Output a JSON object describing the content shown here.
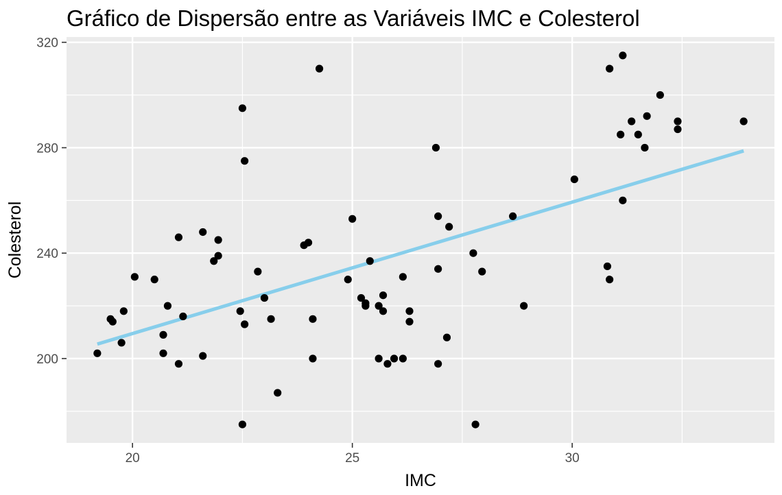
{
  "chart_data": {
    "type": "scatter",
    "title": "Gráfico de Dispersão entre as Variáveis IMC e Colesterol",
    "xlabel": "IMC",
    "ylabel": "Colesterol",
    "xlim": [
      18.5,
      34.6
    ],
    "ylim": [
      168,
      322
    ],
    "x_ticks": [
      20,
      25,
      30
    ],
    "y_ticks": [
      200,
      240,
      280,
      320
    ],
    "x_tick_labels": [
      "20",
      "25",
      "30"
    ],
    "y_tick_labels": [
      "200",
      "240",
      "280",
      "320"
    ],
    "grid": true,
    "background": "#ebebeb",
    "point_color": "#000000",
    "trend_color": "#87ceeb",
    "trend_line": {
      "x": [
        19.2,
        33.9
      ],
      "y": [
        205.5,
        278.8
      ]
    },
    "points": [
      {
        "x": 19.2,
        "y": 202
      },
      {
        "x": 19.5,
        "y": 215
      },
      {
        "x": 19.55,
        "y": 214
      },
      {
        "x": 19.75,
        "y": 206
      },
      {
        "x": 19.8,
        "y": 218
      },
      {
        "x": 20.05,
        "y": 231
      },
      {
        "x": 20.5,
        "y": 230
      },
      {
        "x": 20.7,
        "y": 209
      },
      {
        "x": 20.7,
        "y": 202
      },
      {
        "x": 20.8,
        "y": 220
      },
      {
        "x": 21.05,
        "y": 246
      },
      {
        "x": 21.05,
        "y": 198
      },
      {
        "x": 21.15,
        "y": 216
      },
      {
        "x": 21.6,
        "y": 248
      },
      {
        "x": 21.6,
        "y": 201
      },
      {
        "x": 21.85,
        "y": 237
      },
      {
        "x": 21.95,
        "y": 239
      },
      {
        "x": 21.95,
        "y": 245
      },
      {
        "x": 22.45,
        "y": 218
      },
      {
        "x": 22.5,
        "y": 295
      },
      {
        "x": 22.5,
        "y": 175
      },
      {
        "x": 22.55,
        "y": 275
      },
      {
        "x": 22.55,
        "y": 213
      },
      {
        "x": 22.85,
        "y": 233
      },
      {
        "x": 23.0,
        "y": 223
      },
      {
        "x": 23.15,
        "y": 215
      },
      {
        "x": 23.3,
        "y": 187
      },
      {
        "x": 23.9,
        "y": 243
      },
      {
        "x": 24.0,
        "y": 244
      },
      {
        "x": 24.1,
        "y": 215
      },
      {
        "x": 24.1,
        "y": 200
      },
      {
        "x": 24.25,
        "y": 310
      },
      {
        "x": 24.9,
        "y": 230
      },
      {
        "x": 25.0,
        "y": 253
      },
      {
        "x": 25.2,
        "y": 223
      },
      {
        "x": 25.3,
        "y": 221
      },
      {
        "x": 25.3,
        "y": 220
      },
      {
        "x": 25.4,
        "y": 237
      },
      {
        "x": 25.6,
        "y": 220
      },
      {
        "x": 25.6,
        "y": 200
      },
      {
        "x": 25.7,
        "y": 224
      },
      {
        "x": 25.7,
        "y": 218
      },
      {
        "x": 25.8,
        "y": 198
      },
      {
        "x": 25.95,
        "y": 200
      },
      {
        "x": 26.15,
        "y": 231
      },
      {
        "x": 26.15,
        "y": 200
      },
      {
        "x": 26.3,
        "y": 218
      },
      {
        "x": 26.3,
        "y": 214
      },
      {
        "x": 26.9,
        "y": 280
      },
      {
        "x": 26.95,
        "y": 254
      },
      {
        "x": 26.95,
        "y": 234
      },
      {
        "x": 26.95,
        "y": 198
      },
      {
        "x": 27.15,
        "y": 208
      },
      {
        "x": 27.2,
        "y": 250
      },
      {
        "x": 27.75,
        "y": 240
      },
      {
        "x": 27.8,
        "y": 175
      },
      {
        "x": 27.95,
        "y": 233
      },
      {
        "x": 28.65,
        "y": 254
      },
      {
        "x": 28.9,
        "y": 220
      },
      {
        "x": 30.05,
        "y": 268
      },
      {
        "x": 30.8,
        "y": 235
      },
      {
        "x": 30.85,
        "y": 310
      },
      {
        "x": 30.85,
        "y": 230
      },
      {
        "x": 31.1,
        "y": 285
      },
      {
        "x": 31.15,
        "y": 315
      },
      {
        "x": 31.15,
        "y": 260
      },
      {
        "x": 31.35,
        "y": 290
      },
      {
        "x": 31.5,
        "y": 285
      },
      {
        "x": 31.65,
        "y": 280
      },
      {
        "x": 31.7,
        "y": 292
      },
      {
        "x": 32.0,
        "y": 300
      },
      {
        "x": 32.4,
        "y": 290
      },
      {
        "x": 32.4,
        "y": 287
      },
      {
        "x": 33.9,
        "y": 290
      }
    ]
  }
}
